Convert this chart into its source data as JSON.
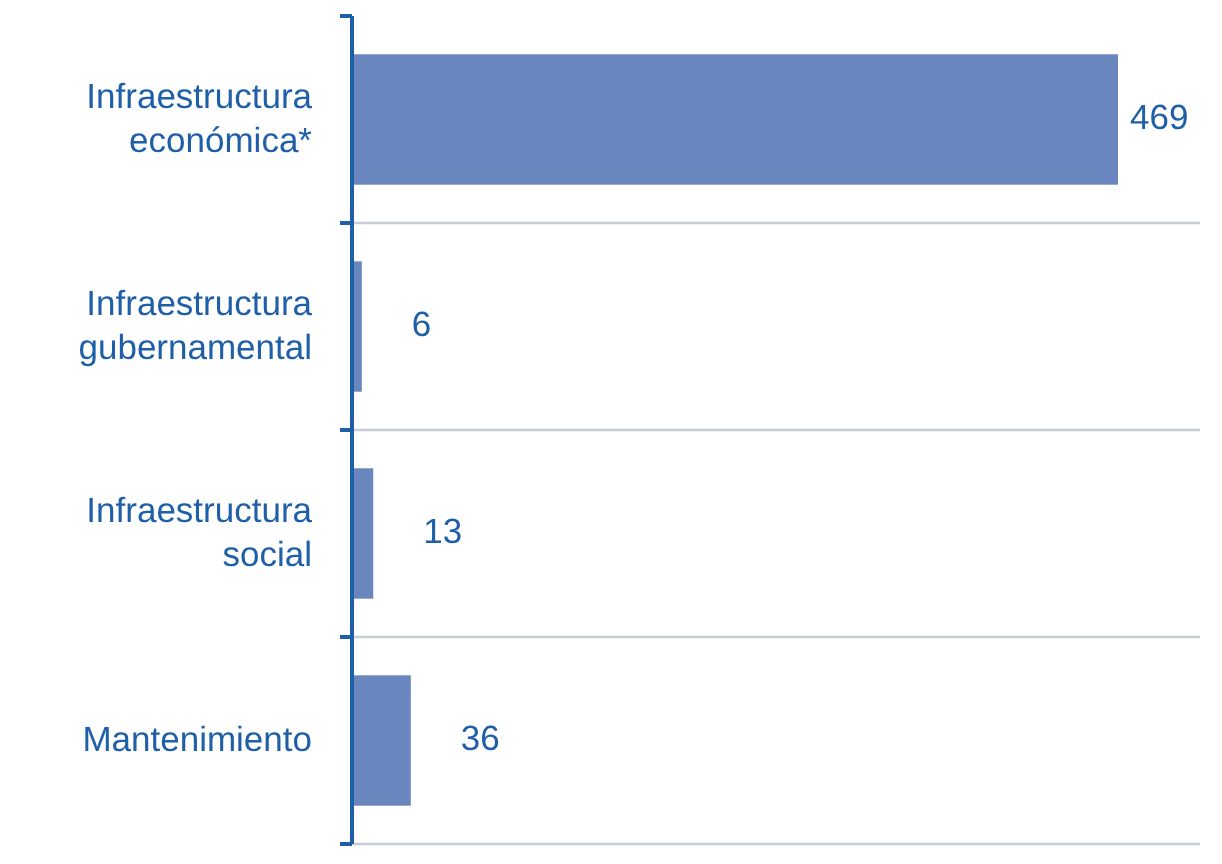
{
  "chart_data": {
    "type": "bar",
    "orientation": "horizontal",
    "categories": [
      "Infraestructura\neconómica*",
      "Infraestructura\ngubernamental",
      "Infraestructura\nsocial",
      "Mantenimiento"
    ],
    "values": [
      469,
      6,
      13,
      36
    ],
    "color": "#6a86be",
    "data_labels": true,
    "grid": true
  }
}
